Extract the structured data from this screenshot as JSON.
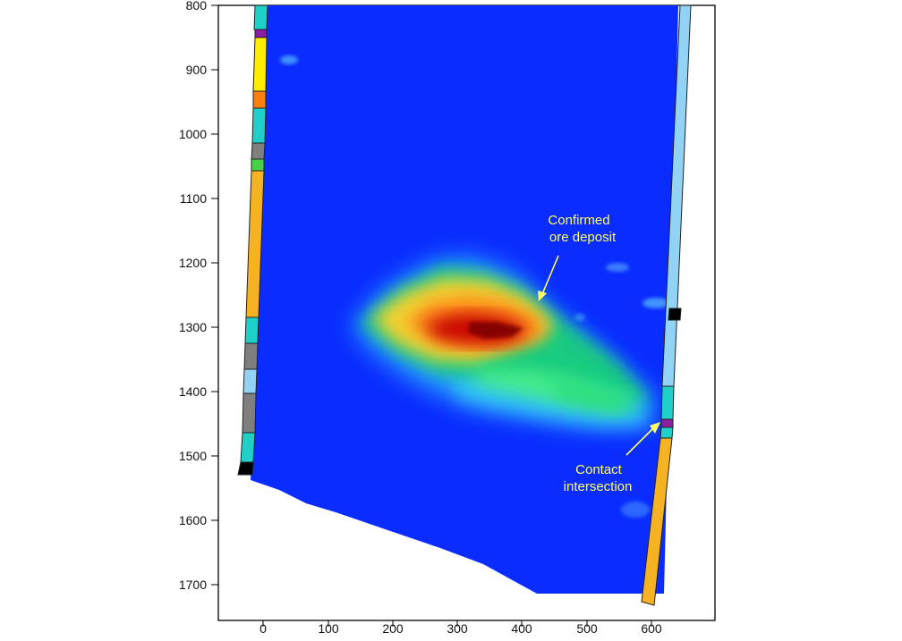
{
  "x_axis": {
    "ticks": [
      "0",
      "100",
      "200",
      "300",
      "400",
      "500",
      "600"
    ]
  },
  "y_axis": {
    "ticks": [
      "800",
      "900",
      "1000",
      "1100",
      "1200",
      "1300",
      "1400",
      "1500",
      "1600",
      "1700"
    ]
  },
  "annotations": {
    "confirmed_deposit": {
      "line1": "Confirmed",
      "line2": "ore deposit"
    },
    "contact_intersection": {
      "line1": "Contact",
      "line2": "intersection"
    }
  },
  "colors": {
    "background_field": "#0a2cff",
    "annotation_text": "#ffff66",
    "annotation_arrow": "#ffff66",
    "frame": "#000000",
    "heat_low": "#2aa7ff",
    "heat_mid": "#18d36a",
    "heat_high": "#ffd12f",
    "heat_peak": "#c70000",
    "log_orange": "#f5b223",
    "log_cyan": "#1fd0c8",
    "log_light_blue": "#92d2f5",
    "log_grey": "#7f7f7f",
    "log_purple": "#8b1f9f",
    "log_green": "#46d147",
    "log_yellow": "#ffed00",
    "log_black": "#000000"
  },
  "icons": {
    "arrow_1": "yellow-pointer-arrow",
    "arrow_2": "yellow-pointer-arrow"
  }
}
